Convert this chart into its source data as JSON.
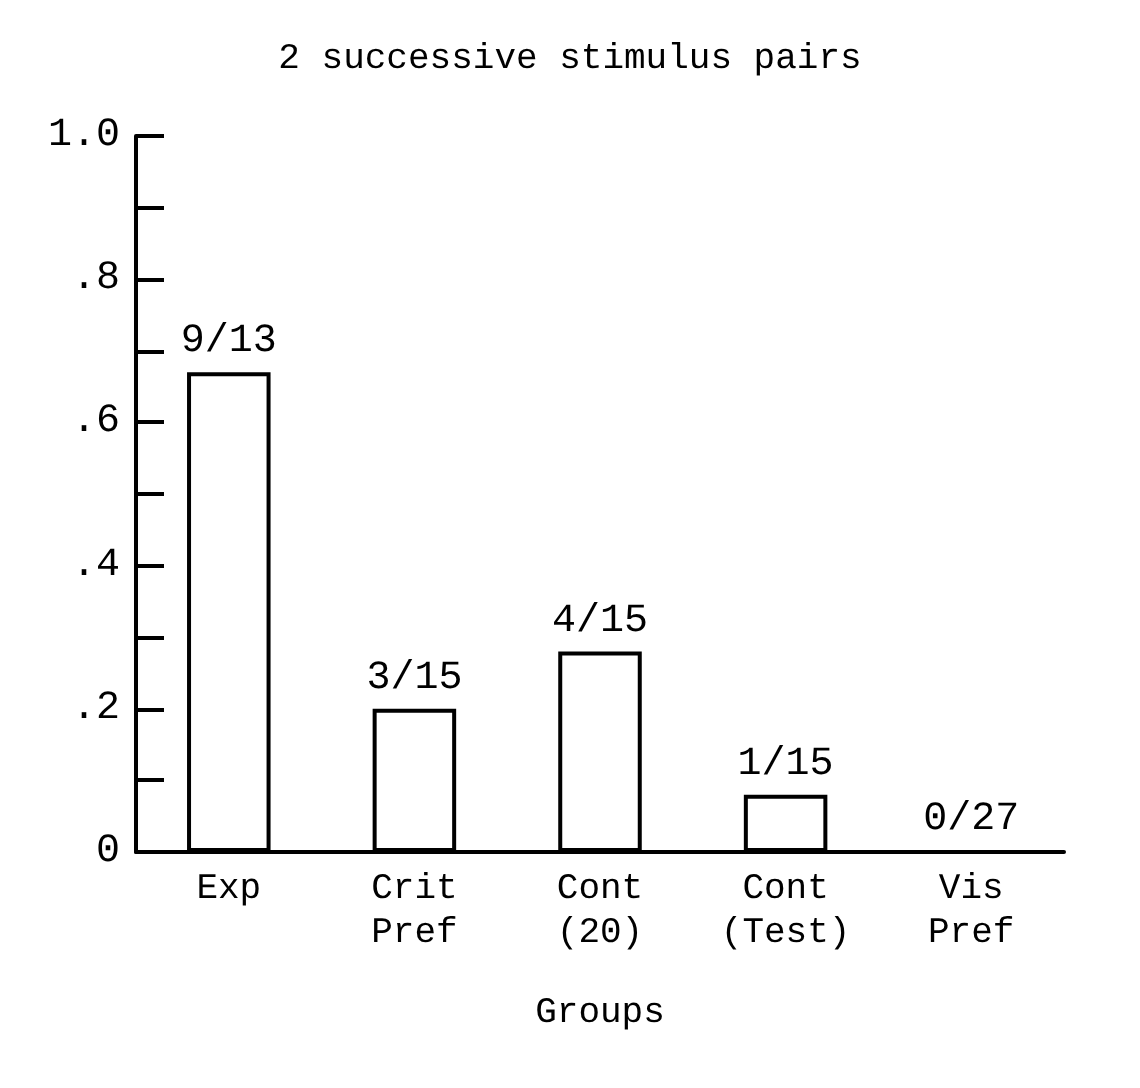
{
  "chart_data": {
    "type": "bar",
    "title": "2 successive stimulus pairs",
    "xlabel": "Groups",
    "categories": [
      "Exp",
      "Crit\nPref",
      "Cont\n(20)",
      "Cont\n(Test)",
      "Vis\nPref"
    ],
    "values": [
      0.67,
      0.2,
      0.28,
      0.08,
      0
    ],
    "value_labels": [
      "9/13",
      "3/15",
      "4/15",
      "1/15",
      "0/27"
    ],
    "color": "#000000",
    "ylim": [
      0,
      1.0
    ],
    "yticks": [
      {
        "value": 0,
        "label": "0"
      },
      {
        "value": 0.1,
        "label": null
      },
      {
        "value": 0.2,
        "label": ".2"
      },
      {
        "value": 0.3,
        "label": null
      },
      {
        "value": 0.4,
        "label": ".4"
      },
      {
        "value": 0.5,
        "label": null
      },
      {
        "value": 0.6,
        "label": ".6"
      },
      {
        "value": 0.7,
        "label": null
      },
      {
        "value": 0.8,
        "label": ".8"
      },
      {
        "value": 0.9,
        "label": null
      },
      {
        "value": 1.0,
        "label": "1.0"
      }
    ],
    "grid": false
  }
}
